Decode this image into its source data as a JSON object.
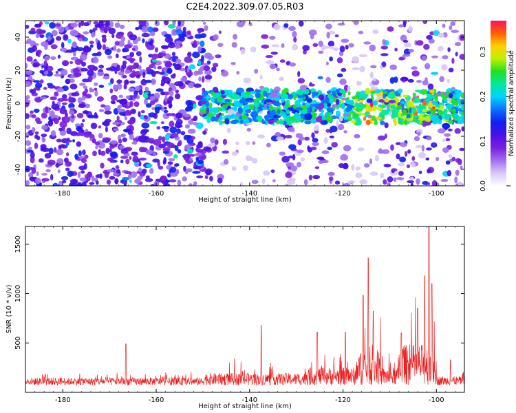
{
  "title": "C2E4.2022.309.07.05.R03",
  "chart_data": [
    {
      "type": "heatmap",
      "xlabel": "Height of straight line (km)",
      "ylabel": "Frequency (Hz)",
      "xlim": [
        -188,
        -94
      ],
      "ylim": [
        -50,
        50
      ],
      "xticks": [
        -180,
        -160,
        -140,
        -120,
        -100
      ],
      "yticks": [
        -40,
        -20,
        0,
        20,
        40
      ],
      "colorbar": {
        "label": "Normalized spectral amplitude",
        "range": [
          0.0,
          0.37
        ],
        "ticks": [
          0.0,
          0.1,
          0.2,
          0.3
        ],
        "colors": [
          "#ffffff",
          "#d8c8f8",
          "#a070f0",
          "#7a1fe0",
          "#4a10e8",
          "#1020f0",
          "#0a70ff",
          "#00d4ff",
          "#00e8a0",
          "#20e020",
          "#c0f000",
          "#ffd000",
          "#ff6000",
          "#ff1060"
        ]
      },
      "features": {
        "signal_band_frequency_hz": [
          -12,
          8
        ],
        "signal_band_start_km": -150,
        "low_signal_gaps_km": [
          [
            -145,
            -137
          ],
          [
            -119,
            -112
          ],
          [
            -100,
            -98
          ]
        ],
        "peak_km": [
          -114,
          -103
        ]
      }
    },
    {
      "type": "line",
      "xlabel": "Height of straight line (km)",
      "ylabel": "SNR (10 * v/v)",
      "xlim": [
        -188,
        -94
      ],
      "ylim": [
        0,
        1680
      ],
      "xticks": [
        -180,
        -160,
        -140,
        -120,
        -100
      ],
      "yticks": [
        500,
        1000,
        1500
      ],
      "color": "#ee2020",
      "baseline_snr": 130,
      "peaks": [
        {
          "x": -166.5,
          "y": 490
        },
        {
          "x": -137.5,
          "y": 680
        },
        {
          "x": -125.5,
          "y": 610
        },
        {
          "x": -119.5,
          "y": 610
        },
        {
          "x": -115.7,
          "y": 980
        },
        {
          "x": -114.6,
          "y": 1360
        },
        {
          "x": -113.5,
          "y": 820
        },
        {
          "x": -107.5,
          "y": 600
        },
        {
          "x": -104.0,
          "y": 850
        },
        {
          "x": -102.5,
          "y": 1180
        },
        {
          "x": -101.6,
          "y": 1680
        },
        {
          "x": -101.0,
          "y": 1100
        },
        {
          "x": -97.0,
          "y": 330
        }
      ]
    }
  ]
}
